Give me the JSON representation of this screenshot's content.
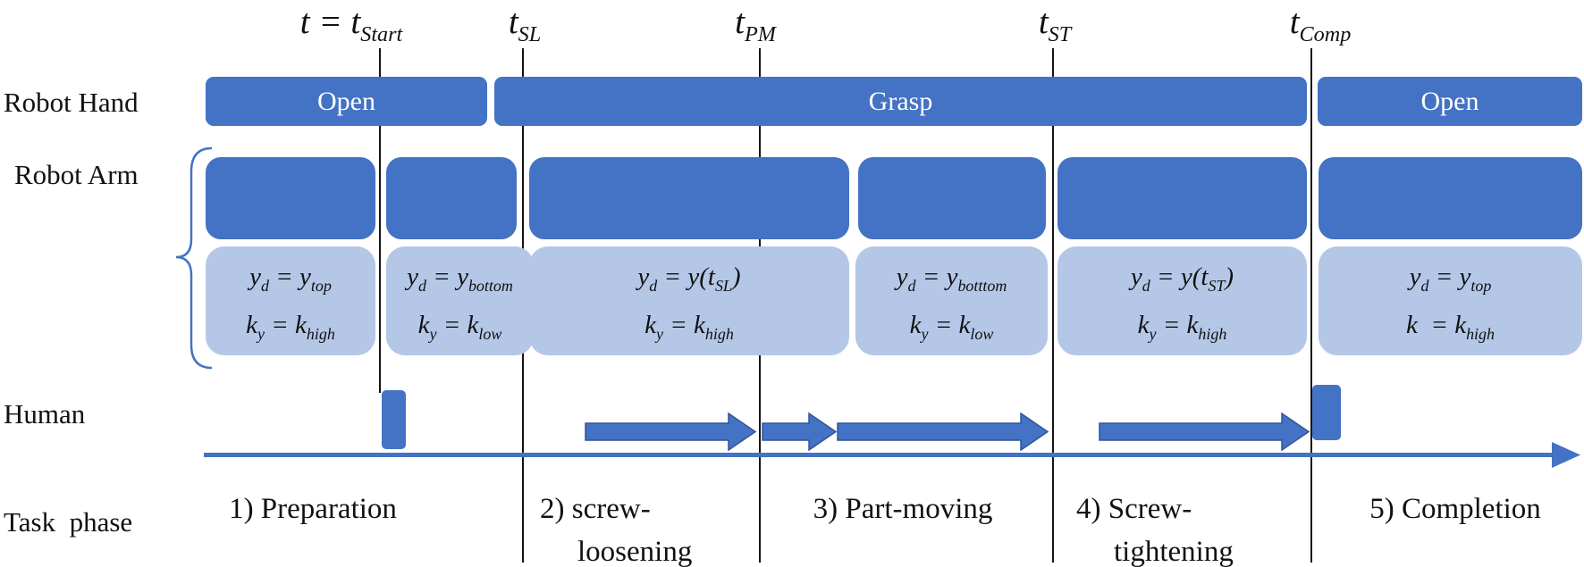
{
  "row_labels": {
    "hand": "Robot Hand",
    "arm": "Robot Arm",
    "human": "Human",
    "task": "Task  phase"
  },
  "time_labels": [
    [
      {
        "b": "t = t",
        "s": "Start"
      }
    ],
    [
      {
        "b": "t",
        "s": "SL"
      }
    ],
    [
      {
        "b": "t",
        "s": "PM"
      }
    ],
    [
      {
        "b": "t",
        "s": "ST"
      }
    ],
    [
      {
        "b": "t",
        "s": "Comp"
      }
    ]
  ],
  "hand_states": [
    "Open",
    "Grasp",
    "Open"
  ],
  "arm_boxes": [
    {
      "l1": [
        {
          "b": "y",
          "s": "d"
        },
        {
          "b": " = "
        },
        {
          "b": "y",
          "s": "top"
        }
      ],
      "l2": [
        {
          "b": "k",
          "s": "y"
        },
        {
          "b": " = "
        },
        {
          "b": "k",
          "s": "high"
        }
      ]
    },
    {
      "l1": [
        {
          "b": "y",
          "s": "d"
        },
        {
          "b": " = "
        },
        {
          "b": "y",
          "s": "bottom"
        }
      ],
      "l2": [
        {
          "b": "k",
          "s": "y"
        },
        {
          "b": " = "
        },
        {
          "b": "k",
          "s": "low"
        }
      ]
    },
    {
      "l1": [
        {
          "b": "y",
          "s": "d"
        },
        {
          "b": " = "
        },
        {
          "b": "y("
        },
        {
          "b": "t",
          "s": "SL"
        },
        {
          "b": ")"
        }
      ],
      "l2": [
        {
          "b": "k",
          "s": "y"
        },
        {
          "b": " = "
        },
        {
          "b": "k",
          "s": "high"
        }
      ]
    },
    {
      "l1": [
        {
          "b": "y",
          "s": "d"
        },
        {
          "b": " = "
        },
        {
          "b": "y",
          "s": "botttom"
        }
      ],
      "l2": [
        {
          "b": "k",
          "s": "y"
        },
        {
          "b": " = "
        },
        {
          "b": "k",
          "s": "low"
        }
      ]
    },
    {
      "l1": [
        {
          "b": "y",
          "s": "d"
        },
        {
          "b": " = "
        },
        {
          "b": "y("
        },
        {
          "b": "t",
          "s": "ST"
        },
        {
          "b": ")"
        }
      ],
      "l2": [
        {
          "b": "k",
          "s": "y"
        },
        {
          "b": " = "
        },
        {
          "b": "k",
          "s": "high"
        }
      ]
    },
    {
      "l1": [
        {
          "b": "y",
          "s": "d"
        },
        {
          "b": " = "
        },
        {
          "b": "y",
          "s": "top"
        }
      ],
      "l2": [
        {
          "b": "k"
        },
        {
          "b": "  = "
        },
        {
          "b": "k",
          "s": "high"
        }
      ]
    }
  ],
  "phases": [
    {
      "line1": "1) Preparation"
    },
    {
      "line1": "2) screw-",
      "line2": "loosening"
    },
    {
      "line1": "3) Part-moving"
    },
    {
      "line1": "4) Screw-",
      "line2": "tightening"
    },
    {
      "line1": "5) Completion"
    }
  ],
  "colors": {
    "accent_blue": "#4472C4",
    "light_blue": "#B4C7E7",
    "arrow_outline": "#2F5597",
    "line_black": "#141414"
  }
}
